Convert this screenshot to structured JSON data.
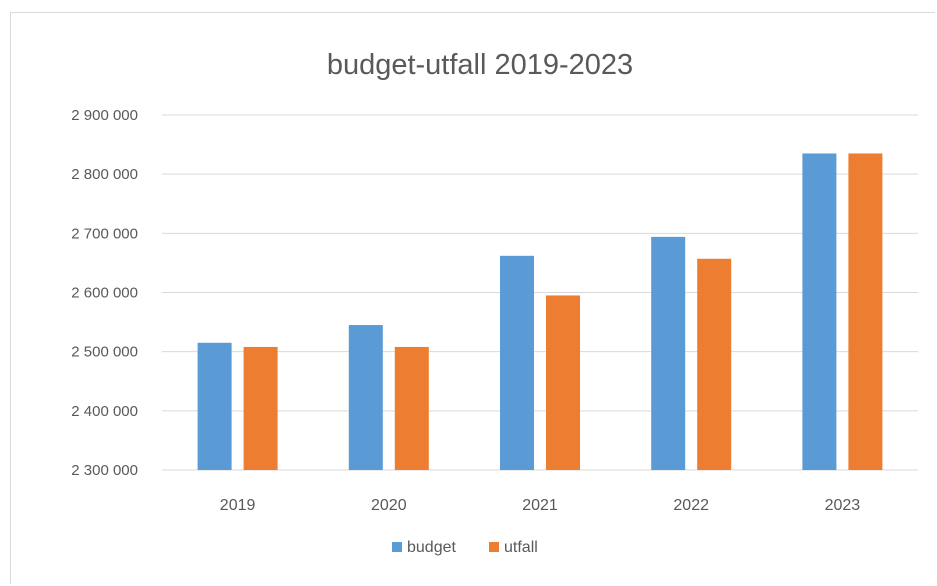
{
  "chart_data": {
    "type": "bar",
    "title": "budget-utfall 2019-2023",
    "xlabel": "",
    "ylabel": "",
    "categories": [
      "2019",
      "2020",
      "2021",
      "2022",
      "2023"
    ],
    "series": [
      {
        "name": "budget",
        "values": [
          2515000,
          2545000,
          2662000,
          2694000,
          2835000
        ]
      },
      {
        "name": "utfall",
        "values": [
          2508000,
          2508000,
          2595000,
          2657000,
          2835000
        ]
      }
    ],
    "ylim": [
      2300000,
      2900000
    ],
    "yticks": [
      2300000,
      2400000,
      2500000,
      2600000,
      2700000,
      2800000,
      2900000
    ],
    "ytick_labels": [
      "2 300 000",
      "2 400 000",
      "2 500 000",
      "2 600 000",
      "2 700 000",
      "2 800 000",
      "2 900 000"
    ],
    "grid": true,
    "legend_position": "bottom",
    "colors": {
      "budget": "#5b9bd5",
      "utfall": "#ed7d31",
      "grid": "#d9d9d9",
      "text": "#595959"
    }
  }
}
